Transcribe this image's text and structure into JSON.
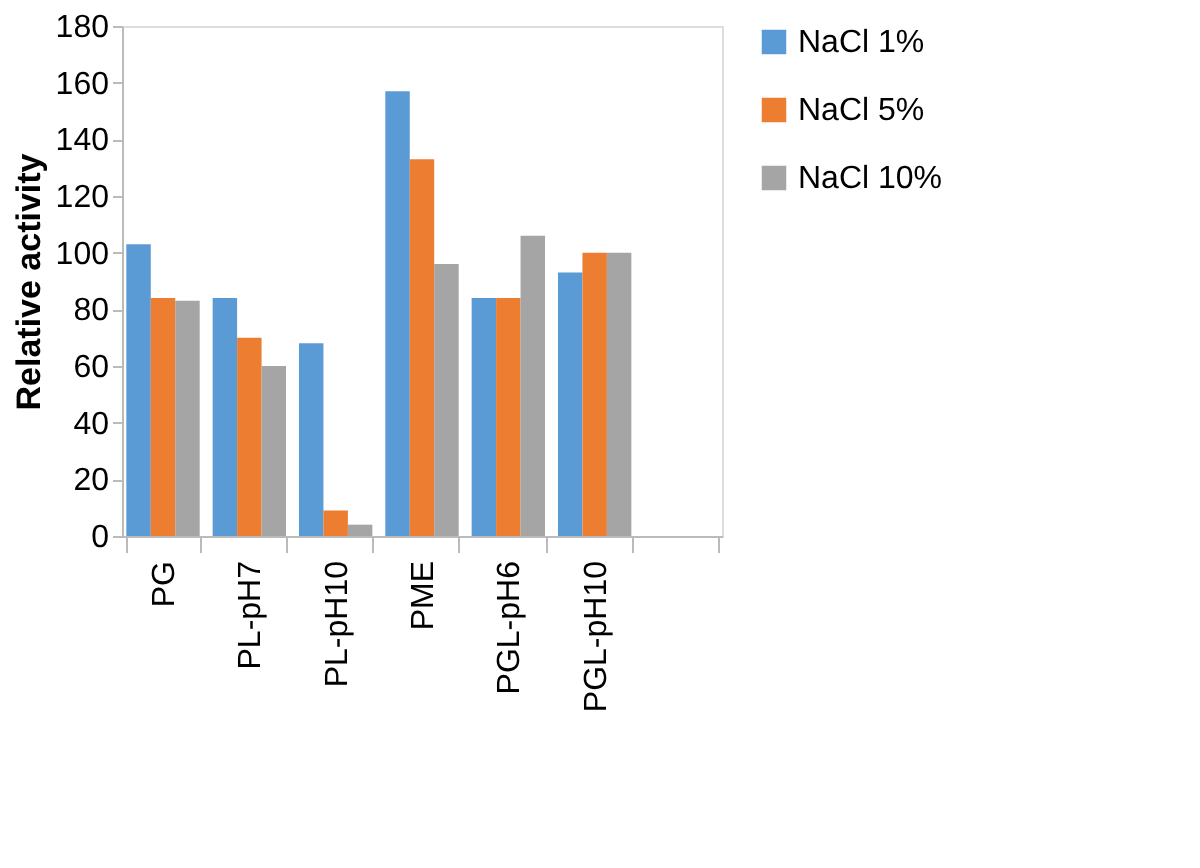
{
  "chart_data": {
    "type": "bar",
    "ylabel": "Relative activity",
    "categories": [
      "PG",
      "PL-pH7",
      "PL-pH10",
      "PME",
      "PGL-pH6",
      "PGL-pH10",
      null
    ],
    "series": [
      {
        "name": "NaCl 1%",
        "color": "#5b9bd5",
        "values": [
          103,
          84,
          68,
          157,
          84,
          93,
          null
        ]
      },
      {
        "name": "NaCl 5%",
        "color": "#ed7d31",
        "values": [
          84,
          70,
          9,
          133,
          84,
          100,
          null
        ]
      },
      {
        "name": "NaCl 10%",
        "color": "#a5a5a5",
        "values": [
          83,
          60,
          4,
          96,
          106,
          100,
          null
        ]
      }
    ],
    "ylim": [
      0,
      180
    ],
    "yticks": [
      0,
      20,
      40,
      60,
      80,
      100,
      120,
      140,
      160,
      180
    ],
    "grid": false,
    "legend": "right"
  }
}
